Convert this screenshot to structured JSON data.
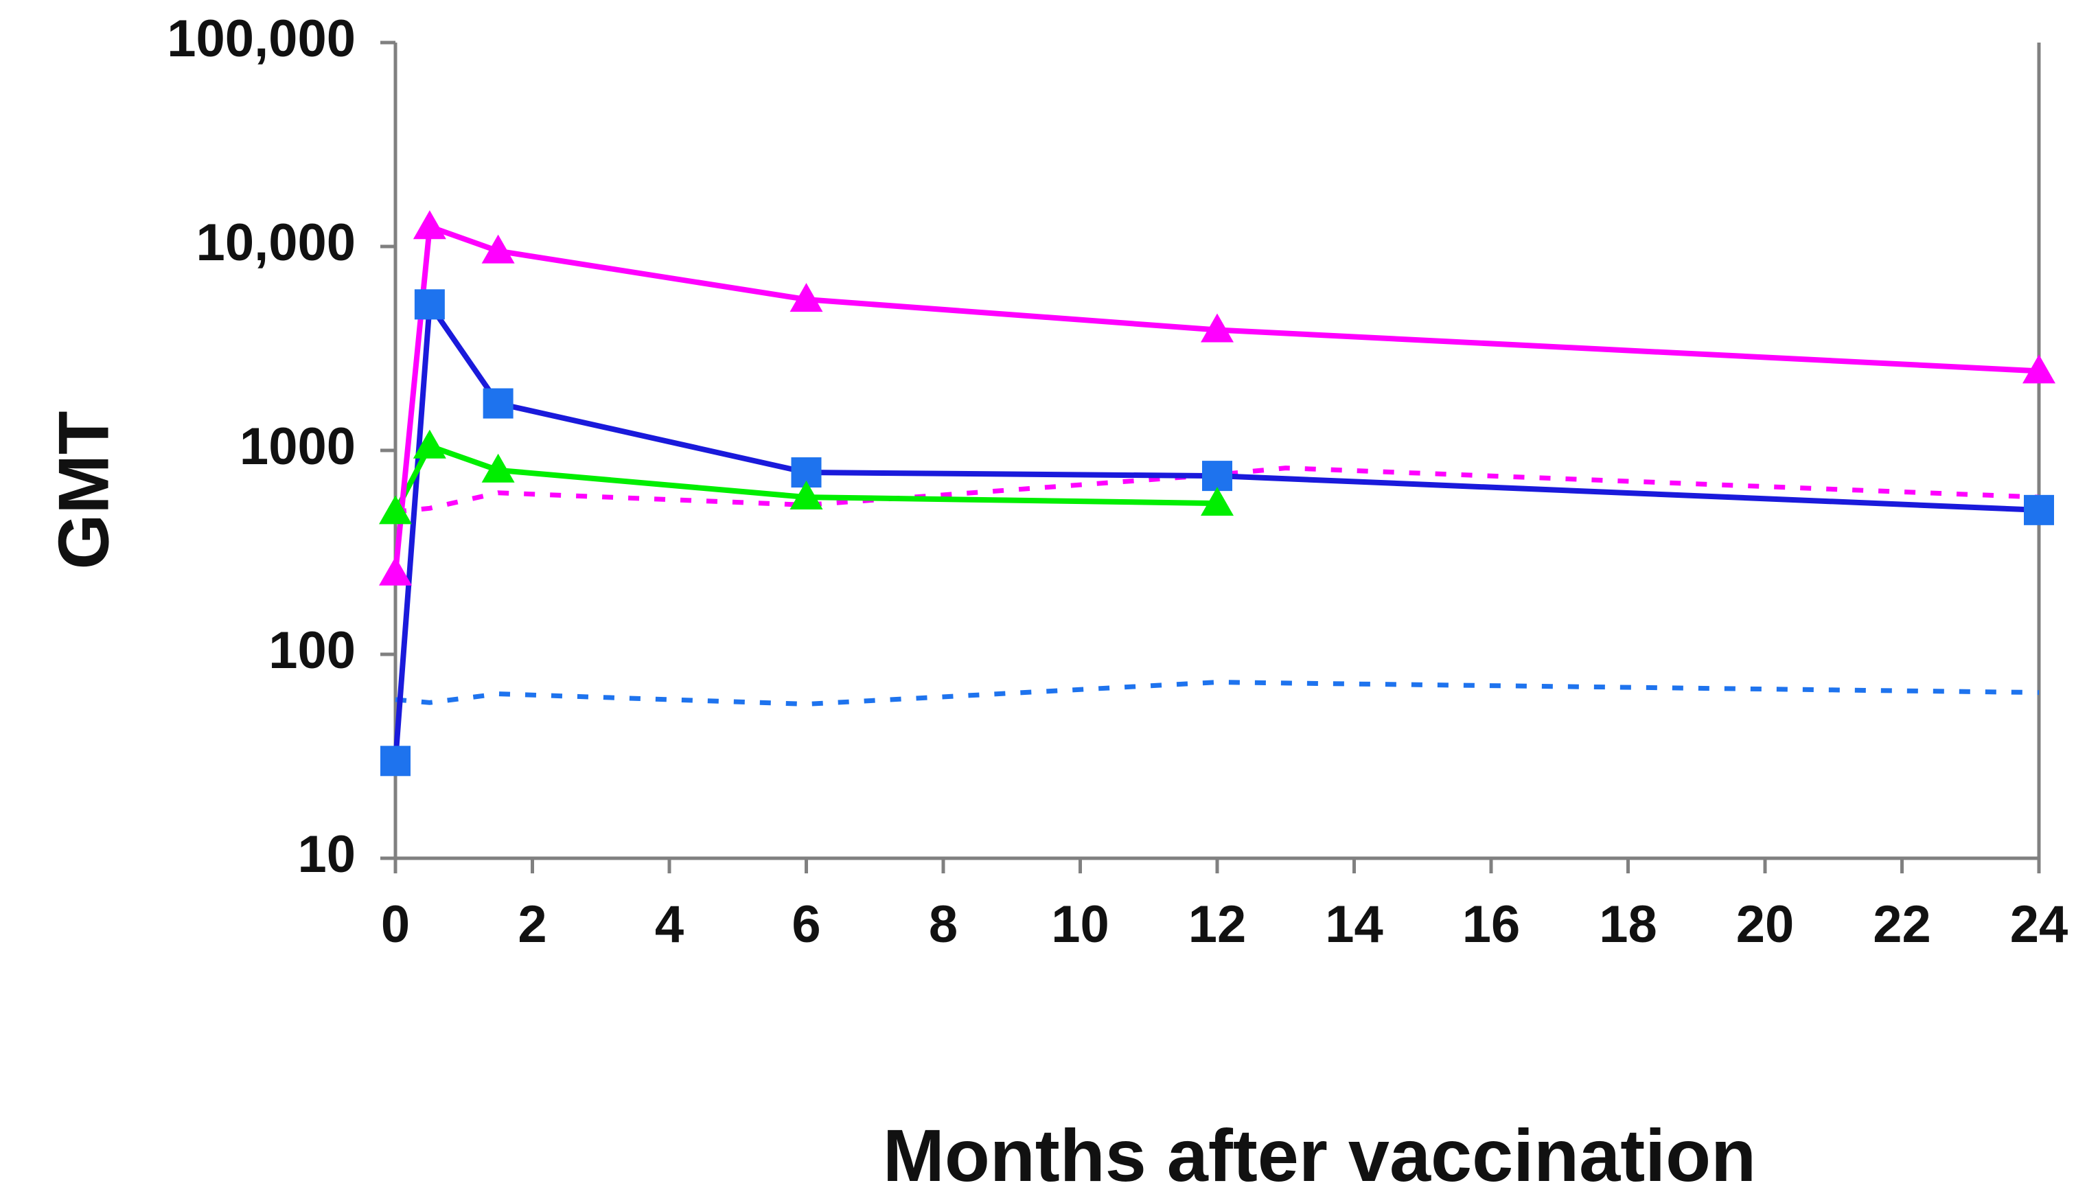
{
  "chart_data": {
    "type": "line",
    "title": "",
    "xlabel": "Months after vaccination",
    "ylabel": "GMT",
    "yscale": "log",
    "ylim": [
      10,
      100000
    ],
    "xlim": [
      0,
      24
    ],
    "xticks": [
      0,
      2,
      4,
      6,
      8,
      10,
      12,
      14,
      16,
      18,
      20,
      22,
      24
    ],
    "x_tick_labels": [
      "0",
      "2",
      "4",
      "6",
      "8",
      "10",
      "12",
      "14",
      "16",
      "18",
      "20",
      "22",
      "24"
    ],
    "yticks": [
      10,
      100,
      1000,
      10000,
      100000
    ],
    "y_tick_labels": [
      "10",
      "100",
      "1000",
      "10,000",
      "100,000"
    ],
    "grid": false,
    "legend": false,
    "series": [
      {
        "name": "magenta-triangle",
        "color": "#ff00ff",
        "style": "solid",
        "marker": "triangle",
        "x": [
          0,
          0.5,
          1.5,
          6,
          12,
          24
        ],
        "values": [
          250,
          12500,
          9500,
          5500,
          3900,
          2450
        ]
      },
      {
        "name": "blue-square",
        "color": "#1a1adb",
        "marker_color": "#1e73ee",
        "style": "solid",
        "marker": "square",
        "x": [
          0,
          0.5,
          1.5,
          6,
          12,
          24
        ],
        "values": [
          30,
          5200,
          1700,
          780,
          750,
          510
        ]
      },
      {
        "name": "green-triangle",
        "color": "#00ee00",
        "style": "solid",
        "marker": "triangle",
        "x": [
          0,
          0.5,
          1.5,
          6,
          12
        ],
        "values": [
          500,
          1050,
          800,
          590,
          550
        ]
      },
      {
        "name": "magenta-dotted",
        "color": "#ff00ff",
        "style": "dotted",
        "marker": "none",
        "x": [
          0,
          0.5,
          1.5,
          6,
          12,
          13,
          24
        ],
        "values": [
          500,
          520,
          620,
          540,
          760,
          820,
          590
        ]
      },
      {
        "name": "blue-dotted",
        "color": "#1e73ee",
        "style": "dotted",
        "marker": "none",
        "x": [
          0,
          0.5,
          1.5,
          6,
          12,
          24
        ],
        "values": [
          60,
          58,
          64,
          57,
          73,
          65
        ]
      }
    ]
  }
}
